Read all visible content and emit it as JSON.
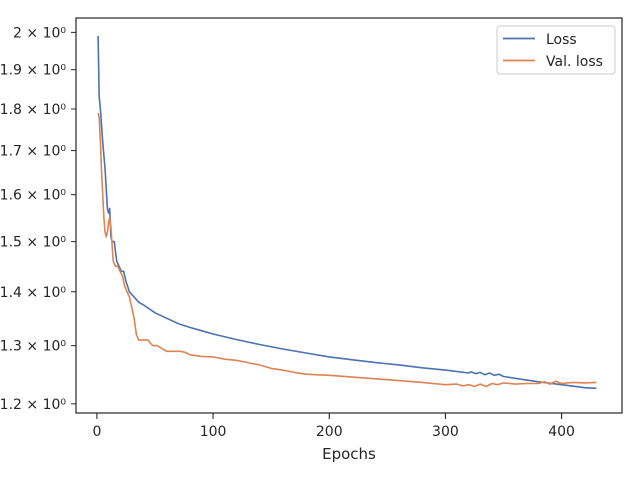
{
  "chart_data": {
    "type": "line",
    "xlabel": "Epochs",
    "ylabel": "",
    "xlim": [
      -18,
      452
    ],
    "ylim": [
      1.185,
      2.04
    ],
    "yscale": "log",
    "grid": false,
    "legend_position": "top-right",
    "x_ticks": [
      0,
      100,
      200,
      300,
      400
    ],
    "x_tick_labels": [
      "0",
      "100",
      "200",
      "300",
      "400"
    ],
    "y_ticks": [
      1.2,
      1.3,
      1.4,
      1.5,
      1.6,
      1.7,
      1.8,
      1.9,
      2.0
    ],
    "y_tick_labels": [
      "1.2 × 10⁰",
      "1.3 × 10⁰",
      "1.4 × 10⁰",
      "1.5 × 10⁰",
      "1.6 × 10⁰",
      "1.7 × 10⁰",
      "1.8 × 10⁰",
      "1.9 × 10⁰",
      "2 × 10⁰"
    ],
    "series": [
      {
        "name": "Loss",
        "color": "#4c72b0",
        "x": [
          1,
          2,
          3,
          5,
          7,
          9,
          10,
          11,
          12,
          13,
          15,
          17,
          19,
          21,
          23,
          25,
          28,
          32,
          36,
          40,
          50,
          60,
          70,
          80,
          90,
          100,
          120,
          140,
          160,
          180,
          200,
          220,
          240,
          260,
          280,
          300,
          320,
          322,
          326,
          330,
          334,
          338,
          342,
          346,
          350,
          360,
          380,
          400,
          420,
          430
        ],
        "y": [
          1.99,
          1.83,
          1.8,
          1.72,
          1.66,
          1.57,
          1.56,
          1.57,
          1.51,
          1.5,
          1.5,
          1.46,
          1.45,
          1.44,
          1.44,
          1.42,
          1.4,
          1.39,
          1.38,
          1.375,
          1.36,
          1.35,
          1.34,
          1.333,
          1.327,
          1.321,
          1.311,
          1.302,
          1.294,
          1.287,
          1.28,
          1.275,
          1.27,
          1.266,
          1.261,
          1.257,
          1.252,
          1.254,
          1.251,
          1.253,
          1.249,
          1.252,
          1.248,
          1.25,
          1.246,
          1.243,
          1.237,
          1.232,
          1.227,
          1.226
        ]
      },
      {
        "name": "Val. loss",
        "color": "#dd8452",
        "x": [
          1,
          2,
          3,
          4,
          5,
          6,
          7,
          8,
          9,
          10,
          11,
          12,
          14,
          16,
          18,
          20,
          22,
          24,
          26,
          28,
          30,
          32,
          34,
          36,
          40,
          44,
          48,
          52,
          56,
          60,
          64,
          68,
          72,
          76,
          80,
          90,
          100,
          110,
          120,
          130,
          140,
          150,
          160,
          170,
          180,
          190,
          200,
          220,
          240,
          260,
          280,
          300,
          310,
          315,
          320,
          325,
          330,
          335,
          340,
          345,
          350,
          360,
          370,
          380,
          385,
          390,
          395,
          400,
          410,
          420,
          430
        ],
        "y": [
          1.79,
          1.78,
          1.72,
          1.65,
          1.6,
          1.55,
          1.52,
          1.51,
          1.52,
          1.54,
          1.55,
          1.53,
          1.46,
          1.45,
          1.45,
          1.44,
          1.43,
          1.41,
          1.4,
          1.39,
          1.37,
          1.35,
          1.32,
          1.31,
          1.31,
          1.31,
          1.3,
          1.3,
          1.295,
          1.29,
          1.29,
          1.29,
          1.29,
          1.288,
          1.284,
          1.281,
          1.28,
          1.276,
          1.274,
          1.27,
          1.266,
          1.26,
          1.257,
          1.253,
          1.25,
          1.249,
          1.248,
          1.245,
          1.242,
          1.239,
          1.236,
          1.232,
          1.233,
          1.23,
          1.232,
          1.229,
          1.233,
          1.229,
          1.234,
          1.232,
          1.235,
          1.233,
          1.234,
          1.234,
          1.237,
          1.233,
          1.238,
          1.234,
          1.236,
          1.235,
          1.236
        ]
      }
    ]
  }
}
